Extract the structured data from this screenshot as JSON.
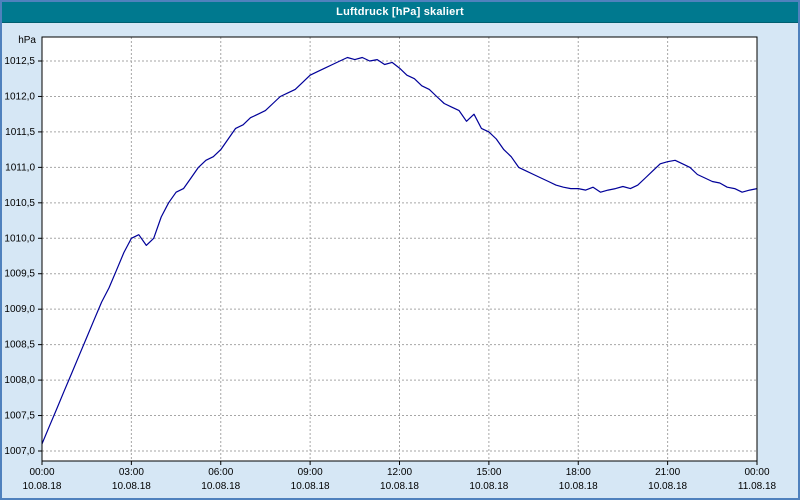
{
  "window": {
    "title": "Luftdruck [hPa] skaliert"
  },
  "colors": {
    "titlebar": "#00798f",
    "background": "#d6e7f5",
    "plot_bg": "#ffffff",
    "line": "#000099",
    "grid": "#a6a6a6",
    "frame": "#000000",
    "text": "#000000",
    "title_text": "#ffffff"
  },
  "chart_data": {
    "type": "line",
    "title": "Luftdruck [hPa] skaliert",
    "xlabel": "",
    "ylabel": "hPa",
    "ylim": [
      1007.0,
      1012.5
    ],
    "ytick_step": 0.5,
    "ytick_labels": [
      "1007,0",
      "1007,5",
      "1008,0",
      "1008,5",
      "1009,0",
      "1009,5",
      "1010,0",
      "1010,5",
      "1011,0",
      "1011,5",
      "1012,0",
      "1012,5"
    ],
    "x_range_hours": [
      0,
      24
    ],
    "x_hours_start": 0,
    "x_hours_step": 0.25,
    "grid": true,
    "legend": "none",
    "xticks": [
      {
        "hour": 0,
        "time": "00:00",
        "date": "10.08.18"
      },
      {
        "hour": 3,
        "time": "03:00",
        "date": "10.08.18"
      },
      {
        "hour": 6,
        "time": "06:00",
        "date": "10.08.18"
      },
      {
        "hour": 9,
        "time": "09:00",
        "date": "10.08.18"
      },
      {
        "hour": 12,
        "time": "12:00",
        "date": "10.08.18"
      },
      {
        "hour": 15,
        "time": "15:00",
        "date": "10.08.18"
      },
      {
        "hour": 18,
        "time": "18:00",
        "date": "10.08.18"
      },
      {
        "hour": 21,
        "time": "21:00",
        "date": "10.08.18"
      },
      {
        "hour": 24,
        "time": "00:00",
        "date": "11.08.18"
      }
    ],
    "series": [
      {
        "name": "Luftdruck",
        "values": [
          1007.1,
          1007.35,
          1007.6,
          1007.85,
          1008.1,
          1008.35,
          1008.6,
          1008.85,
          1009.1,
          1009.3,
          1009.55,
          1009.8,
          1010.0,
          1010.05,
          1009.9,
          1010.0,
          1010.3,
          1010.5,
          1010.65,
          1010.7,
          1010.85,
          1011.0,
          1011.1,
          1011.15,
          1011.25,
          1011.4,
          1011.55,
          1011.6,
          1011.7,
          1011.75,
          1011.8,
          1011.9,
          1012.0,
          1012.05,
          1012.1,
          1012.2,
          1012.3,
          1012.35,
          1012.4,
          1012.45,
          1012.5,
          1012.55,
          1012.52,
          1012.55,
          1012.5,
          1012.52,
          1012.45,
          1012.48,
          1012.4,
          1012.3,
          1012.25,
          1012.15,
          1012.1,
          1012.0,
          1011.9,
          1011.85,
          1011.8,
          1011.65,
          1011.75,
          1011.55,
          1011.5,
          1011.4,
          1011.25,
          1011.15,
          1011.0,
          1010.95,
          1010.9,
          1010.85,
          1010.8,
          1010.75,
          1010.72,
          1010.7,
          1010.7,
          1010.68,
          1010.72,
          1010.65,
          1010.68,
          1010.7,
          1010.73,
          1010.7,
          1010.75,
          1010.85,
          1010.95,
          1011.05,
          1011.08,
          1011.1,
          1011.05,
          1011.0,
          1010.9,
          1010.85,
          1010.8,
          1010.78,
          1010.72,
          1010.7,
          1010.65,
          1010.68,
          1010.7
        ]
      }
    ]
  }
}
